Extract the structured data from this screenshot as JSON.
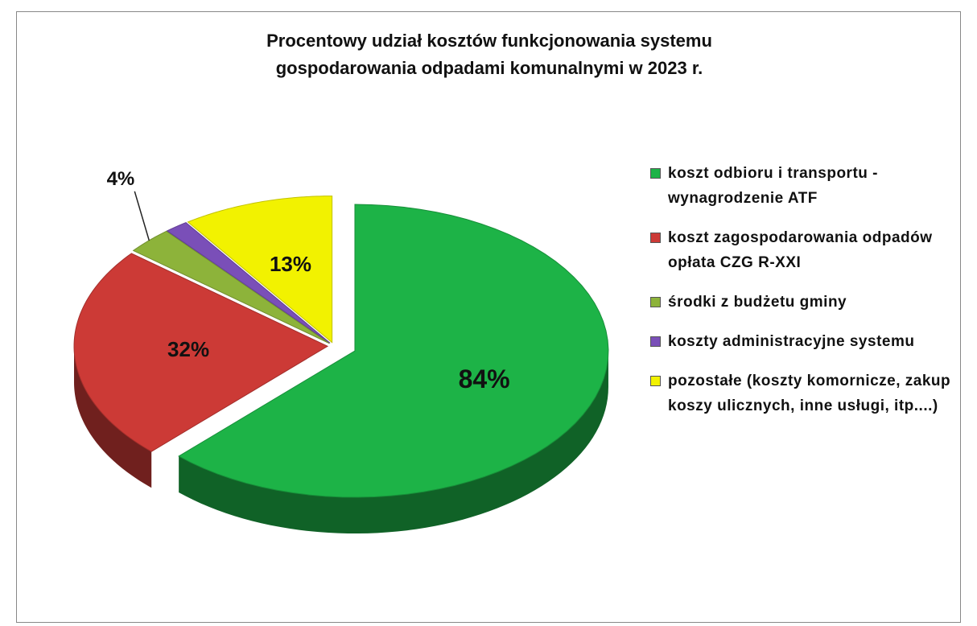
{
  "chart_data": {
    "type": "pie",
    "title": "Procentowy udział kosztów funkcjonowania systemu gospodarowania odpadami komunalnymi w 2023 r.",
    "categories": [
      "koszt odbioru i transportu - wynagrodzenie ATF",
      "koszt zagospodarowania odpadów opłata CZG R-XXI",
      "środki z budżetu gminy",
      "koszty administracyjne systemu",
      "pozostałe (koszty komornicze, zakup koszy ulicznych, inne usługi, itp....)"
    ],
    "values": [
      84,
      32,
      4,
      2,
      13
    ],
    "value_labels": [
      "84%",
      "32%",
      "4%",
      null,
      "13%"
    ],
    "colors": [
      "#1db347",
      "#cc3a36",
      "#8db33a",
      "#7a4fb8",
      "#f2f200"
    ],
    "legend": "right"
  }
}
